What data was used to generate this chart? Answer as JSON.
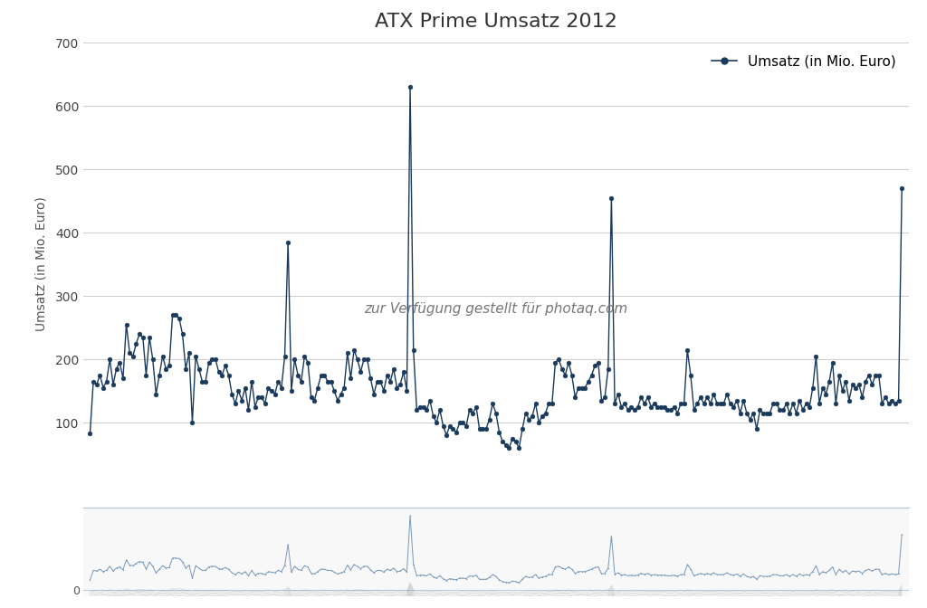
{
  "title": "ATX Prime Umsatz 2012",
  "ylabel": "Umsatz (in Mio. Euro)",
  "legend_label": "Umsatz (in Mio. Euro)",
  "line_color": "#1a3a5c",
  "marker_color": "#1a3a5c",
  "annotation_text": "zur Verfügung gestellt für photaq.com",
  "values": [
    83,
    165,
    160,
    175,
    155,
    165,
    200,
    160,
    185,
    195,
    170,
    255,
    210,
    205,
    225,
    240,
    235,
    175,
    235,
    200,
    145,
    175,
    205,
    185,
    190,
    270,
    270,
    265,
    240,
    185,
    210,
    100,
    205,
    185,
    165,
    165,
    195,
    200,
    200,
    180,
    175,
    190,
    175,
    145,
    130,
    150,
    135,
    155,
    120,
    165,
    125,
    140,
    140,
    130,
    155,
    150,
    145,
    165,
    155,
    205,
    385,
    150,
    200,
    175,
    165,
    205,
    195,
    140,
    135,
    155,
    175,
    175,
    165,
    165,
    150,
    135,
    145,
    155,
    210,
    170,
    215,
    200,
    180,
    200,
    200,
    170,
    145,
    165,
    165,
    150,
    175,
    165,
    185,
    155,
    160,
    180,
    150,
    630,
    215,
    120,
    125,
    125,
    120,
    135,
    110,
    100,
    120,
    95,
    80,
    95,
    90,
    85,
    100,
    100,
    95,
    120,
    115,
    125,
    90,
    90,
    90,
    105,
    130,
    115,
    85,
    70,
    65,
    60,
    75,
    70,
    60,
    90,
    115,
    105,
    110,
    130,
    100,
    110,
    115,
    130,
    130,
    195,
    200,
    185,
    175,
    195,
    175,
    140,
    155,
    155,
    155,
    165,
    175,
    190,
    195,
    135,
    140,
    185,
    455,
    130,
    145,
    125,
    130,
    120,
    125,
    120,
    125,
    140,
    130,
    140,
    125,
    130,
    125,
    125,
    125,
    120,
    120,
    125,
    115,
    130,
    130,
    215,
    175,
    120,
    130,
    140,
    130,
    140,
    130,
    145,
    130,
    130,
    130,
    145,
    130,
    125,
    135,
    115,
    135,
    115,
    105,
    115,
    90,
    120,
    115,
    115,
    115,
    130,
    130,
    120,
    120,
    130,
    115,
    130,
    115,
    135,
    120,
    130,
    125,
    155,
    205,
    130,
    155,
    145,
    165,
    195,
    130,
    175,
    150,
    165,
    135,
    160,
    155,
    160,
    140,
    165,
    175,
    160,
    175,
    175,
    130,
    140,
    130,
    135,
    130,
    135,
    470
  ],
  "background_color": "#ffffff",
  "grid_color": "#d0d0d0",
  "mini_bg_color": "#f8f8f8",
  "mini_line_color": "#7799bb",
  "mini_gray_color": "#888888",
  "title_fontsize": 16,
  "axis_fontsize": 10,
  "legend_fontsize": 11
}
